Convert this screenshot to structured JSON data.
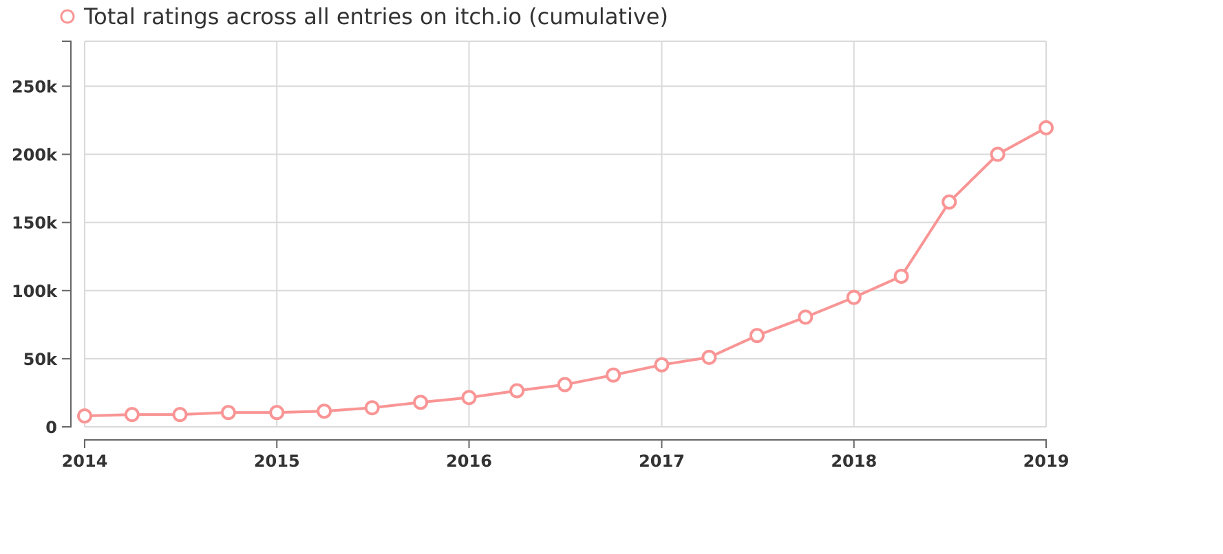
{
  "chart_data": {
    "type": "line",
    "title": "",
    "xlabel": "",
    "ylabel": "",
    "legend": {
      "placement": "top-left",
      "entries": [
        "Total ratings across all entries on itch.io (cumulative)"
      ]
    },
    "colors": {
      "series": "#f99595",
      "grid": "#d9d9d9",
      "axis": "#666666",
      "text": "#333333"
    },
    "grid": true,
    "x_ticks": [
      "2014",
      "2015",
      "2016",
      "2017",
      "2018",
      "2019"
    ],
    "xlim": [
      "2014-01-01",
      "2019-01-01"
    ],
    "y_ticks": [
      {
        "value": 0,
        "label": "0"
      },
      {
        "value": 50000,
        "label": "50k"
      },
      {
        "value": 100000,
        "label": "100k"
      },
      {
        "value": 150000,
        "label": "150k"
      },
      {
        "value": 200000,
        "label": "200k"
      },
      {
        "value": 250000,
        "label": "250k"
      }
    ],
    "ylim": [
      0,
      283000
    ],
    "series": [
      {
        "name": "Total ratings across all entries on itch.io (cumulative)",
        "x": [
          "2014-01-01",
          "2014-04-01",
          "2014-07-01",
          "2014-10-01",
          "2015-01-01",
          "2015-04-01",
          "2015-07-01",
          "2015-10-01",
          "2016-01-01",
          "2016-04-01",
          "2016-07-01",
          "2016-10-01",
          "2017-01-01",
          "2017-04-01",
          "2017-07-01",
          "2017-10-01",
          "2018-01-01",
          "2018-04-01",
          "2018-07-01",
          "2018-10-01",
          "2019-01-01"
        ],
        "y": [
          8000,
          9000,
          9000,
          10500,
          10500,
          11500,
          14000,
          18000,
          21500,
          26500,
          31000,
          38000,
          45500,
          51000,
          67000,
          80500,
          95000,
          110500,
          165000,
          200000,
          219500
        ]
      }
    ]
  }
}
